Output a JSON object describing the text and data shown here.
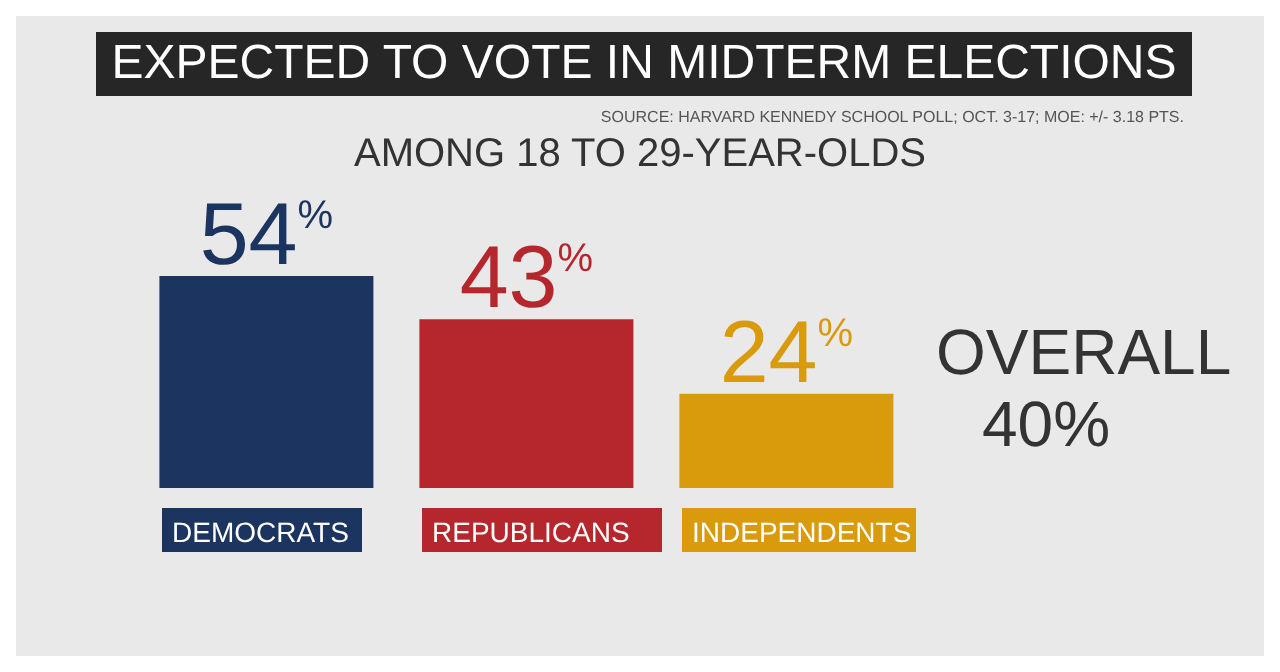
{
  "chart_data": {
    "type": "bar",
    "title": "EXPECTED TO VOTE IN MIDTERM ELECTIONS",
    "subtitle": "AMONG 18 TO 29-YEAR-OLDS",
    "categories": [
      "DEMOCRATS",
      "REPUBLICANS",
      "INDEPENDENTS"
    ],
    "values": [
      54,
      43,
      24
    ],
    "colors": [
      "#1b3560",
      "#b5272d",
      "#d99a0b"
    ],
    "value_labels": [
      "54$^{%}$",
      "43$^{%}$",
      "24$^{%}$"
    ],
    "annotations": [
      "SOURCE: HARVARD KENNEDY SCHOOL POLL; OCT. 3-17; MOE: +/- 3.18 PTS.",
      "OVERALL 40%"
    ],
    "legend": false,
    "grid": false
  }
}
